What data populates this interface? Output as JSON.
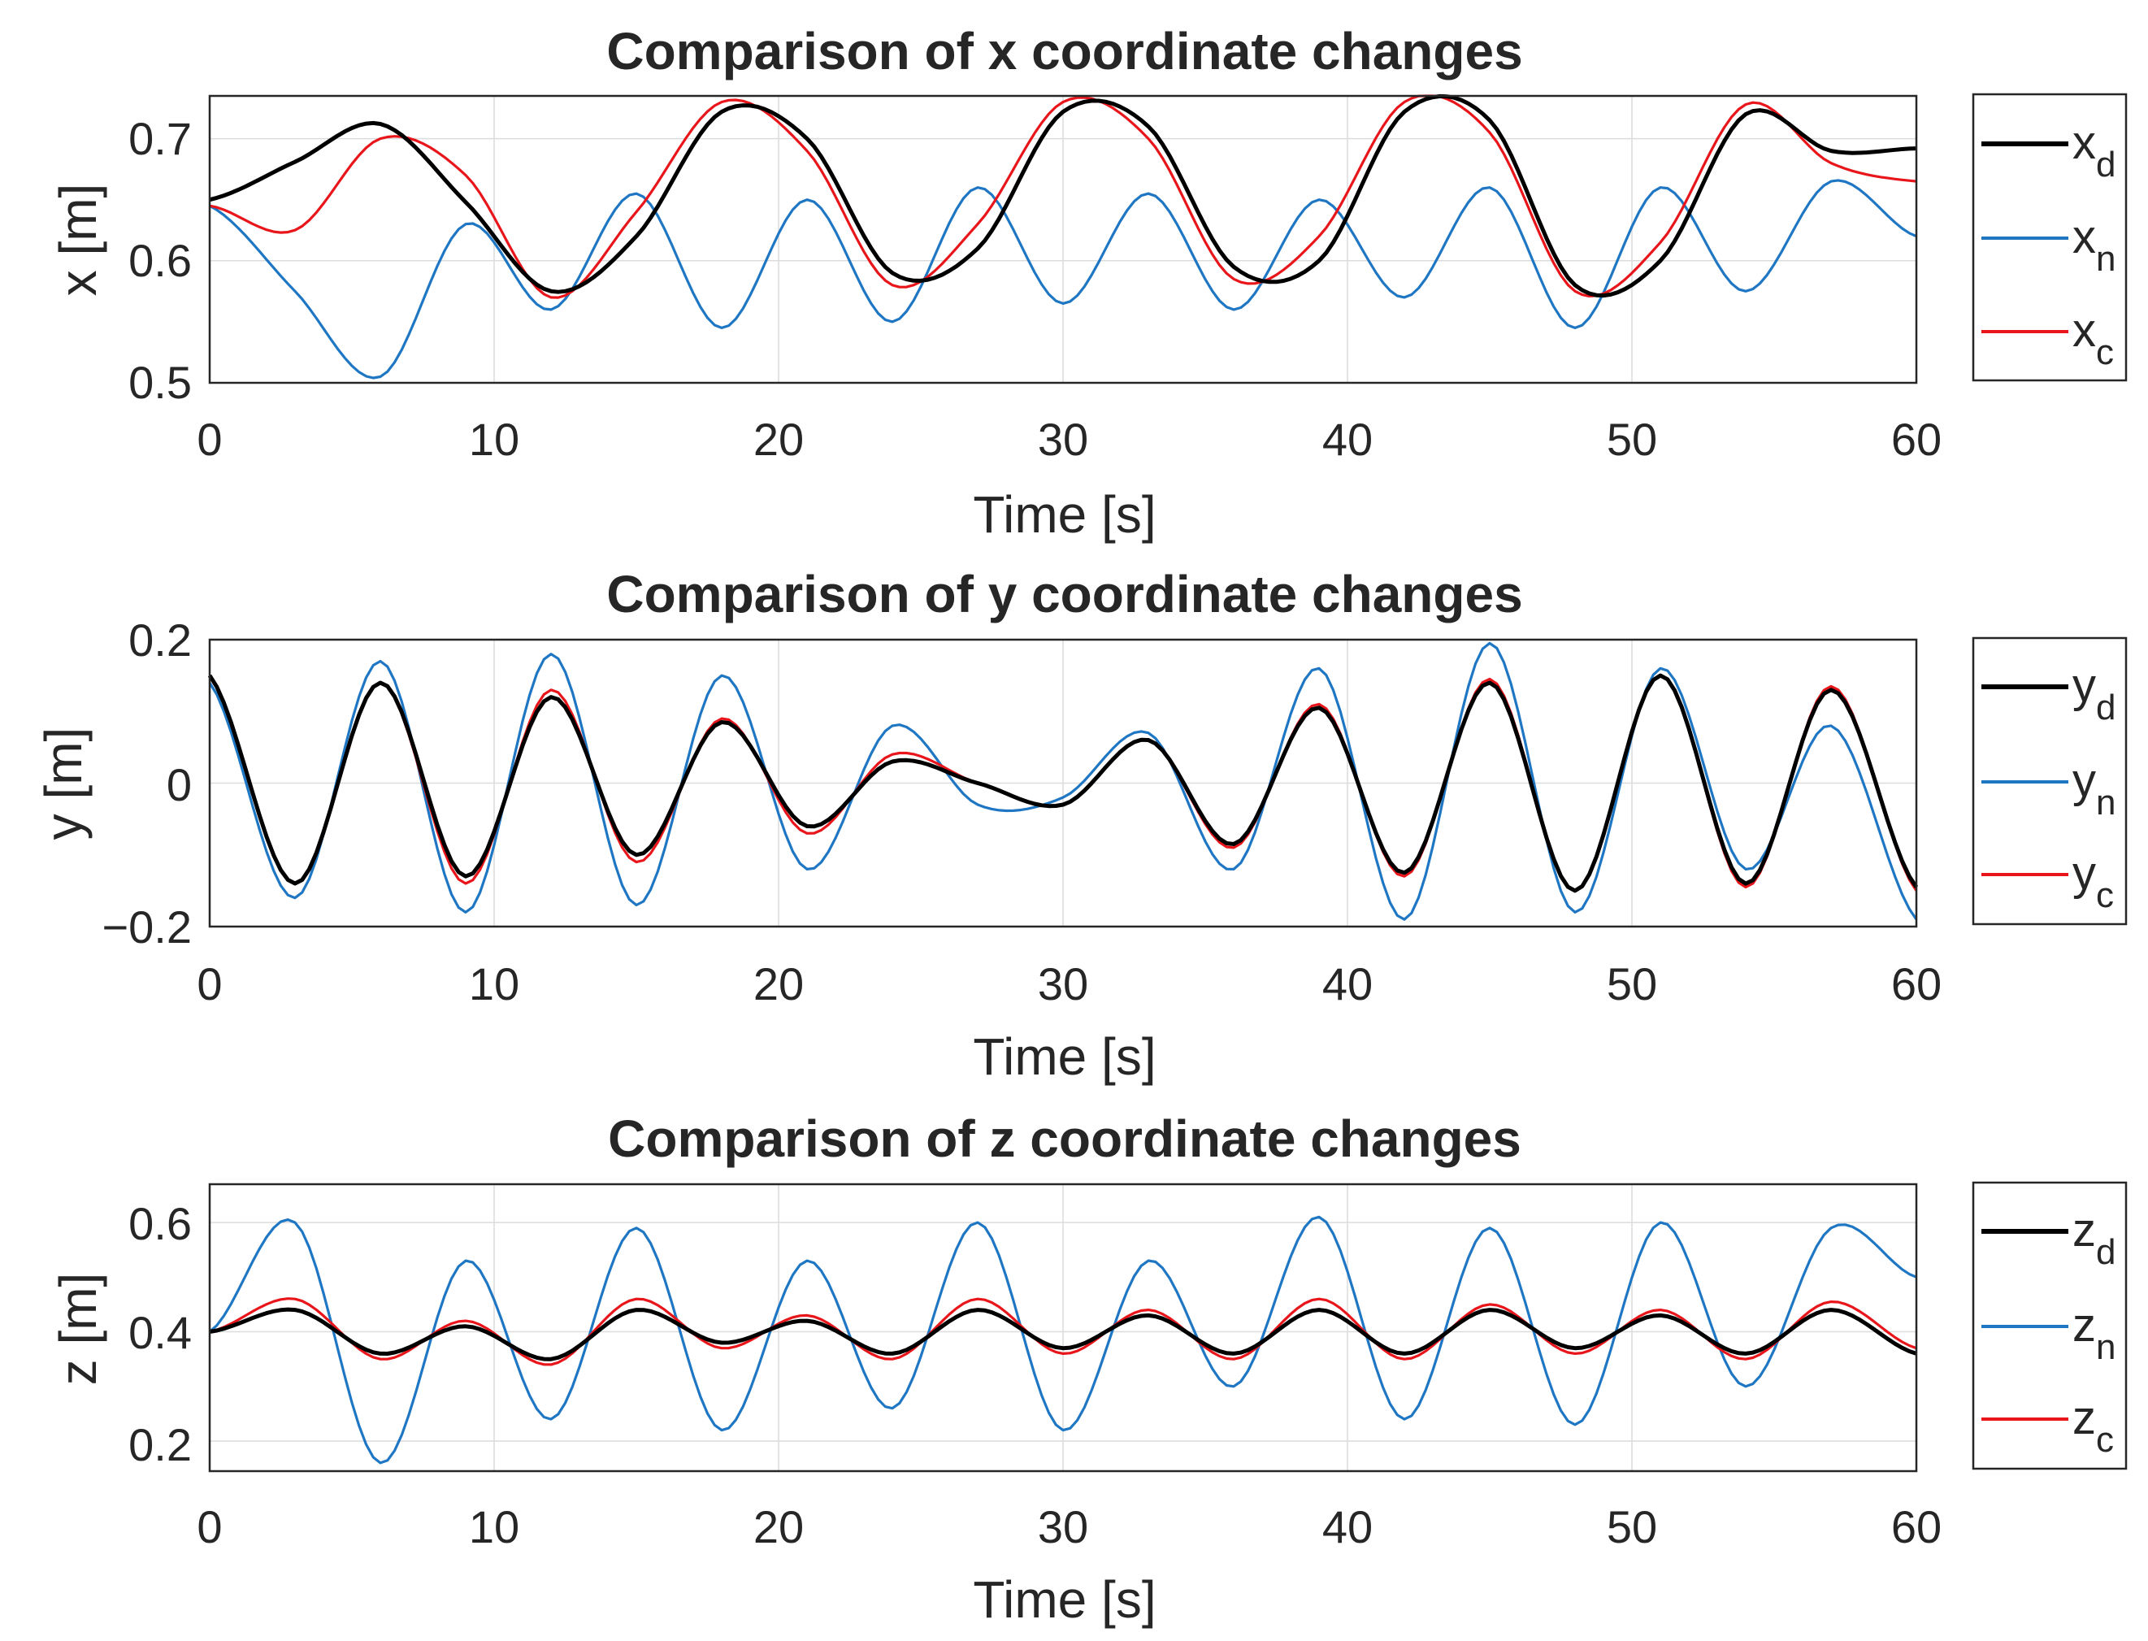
{
  "chart_data": [
    {
      "type": "line",
      "title": "Comparison of x coordinate changes",
      "xlabel": "Time [s]",
      "ylabel": "x [m]",
      "xlim": [
        0,
        60
      ],
      "ylim": [
        0.5,
        0.735
      ],
      "xticks": [
        "0",
        "10",
        "20",
        "30",
        "40",
        "50",
        "60"
      ],
      "yticks": [
        "0.5",
        "0.6",
        "0.7"
      ],
      "grid": true,
      "legend": "outside-right",
      "x": [
        0,
        3,
        6,
        9,
        12,
        15,
        18,
        21,
        24,
        27,
        30,
        33,
        36,
        39,
        42,
        45,
        48,
        51,
        54,
        57,
        60
      ],
      "series": [
        {
          "name": "x",
          "sub": "d",
          "color": "#000000",
          "values": [
            0.65,
            0.681,
            0.712,
            0.648,
            0.575,
            0.62,
            0.722,
            0.7,
            0.59,
            0.61,
            0.722,
            0.71,
            0.595,
            0.6,
            0.722,
            0.715,
            0.58,
            0.6,
            0.72,
            0.69,
            0.692
          ]
        },
        {
          "name": "x",
          "sub": "n",
          "color": "#1f77c4",
          "values": [
            0.645,
            0.575,
            0.505,
            0.63,
            0.56,
            0.655,
            0.545,
            0.65,
            0.55,
            0.66,
            0.565,
            0.655,
            0.56,
            0.65,
            0.57,
            0.66,
            0.545,
            0.66,
            0.575,
            0.665,
            0.62
          ]
        },
        {
          "name": "x",
          "sub": "c",
          "color": "#e8161b",
          "values": [
            0.645,
            0.625,
            0.7,
            0.67,
            0.57,
            0.64,
            0.73,
            0.69,
            0.58,
            0.63,
            0.73,
            0.7,
            0.585,
            0.62,
            0.73,
            0.705,
            0.575,
            0.615,
            0.728,
            0.68,
            0.665
          ]
        }
      ]
    },
    {
      "type": "line",
      "title": "Comparison of y coordinate changes",
      "xlabel": "Time [s]",
      "ylabel": "y [m]",
      "xlim": [
        0,
        60
      ],
      "ylim": [
        -0.2,
        0.2
      ],
      "xticks": [
        "0",
        "10",
        "20",
        "30",
        "40",
        "50",
        "60"
      ],
      "yticks": [
        "−0.2",
        "0",
        "0.2"
      ],
      "grid": true,
      "legend": "outside-right",
      "x": [
        0,
        3,
        6,
        9,
        12,
        15,
        18,
        21,
        24,
        27,
        30,
        33,
        36,
        39,
        42,
        45,
        48,
        51,
        54,
        57,
        60
      ],
      "series": [
        {
          "name": "y",
          "sub": "d",
          "color": "#000000",
          "values": [
            0.15,
            -0.14,
            0.14,
            -0.13,
            0.12,
            -0.1,
            0.085,
            -0.06,
            0.03,
            0.0,
            -0.03,
            0.06,
            -0.085,
            0.105,
            -0.125,
            0.14,
            -0.15,
            0.15,
            -0.14,
            0.13,
            -0.145
          ]
        },
        {
          "name": "y",
          "sub": "n",
          "color": "#1f77c4",
          "values": [
            0.14,
            -0.16,
            0.17,
            -0.18,
            0.18,
            -0.17,
            0.15,
            -0.12,
            0.08,
            -0.03,
            -0.02,
            0.07,
            -0.12,
            0.16,
            -0.19,
            0.195,
            -0.18,
            0.16,
            -0.12,
            0.08,
            -0.19
          ]
        },
        {
          "name": "y",
          "sub": "c",
          "color": "#e8161b",
          "values": [
            0.15,
            -0.14,
            0.14,
            -0.14,
            0.13,
            -0.11,
            0.09,
            -0.07,
            0.04,
            0.0,
            -0.03,
            0.06,
            -0.09,
            0.11,
            -0.13,
            0.145,
            -0.15,
            0.15,
            -0.145,
            0.135,
            -0.15
          ]
        }
      ]
    },
    {
      "type": "line",
      "title": "Comparison of z coordinate changes",
      "xlabel": "Time [s]",
      "ylabel": "z [m]",
      "xlim": [
        0,
        60
      ],
      "ylim": [
        0.145,
        0.67
      ],
      "xticks": [
        "0",
        "10",
        "20",
        "30",
        "40",
        "50",
        "60"
      ],
      "yticks": [
        "0.2",
        "0.4",
        "0.6"
      ],
      "grid": true,
      "legend": "outside-right",
      "x": [
        0,
        3,
        6,
        9,
        12,
        15,
        18,
        21,
        24,
        27,
        30,
        33,
        36,
        39,
        42,
        45,
        48,
        51,
        54,
        57,
        60
      ],
      "series": [
        {
          "name": "z",
          "sub": "d",
          "color": "#000000",
          "values": [
            0.4,
            0.44,
            0.36,
            0.41,
            0.35,
            0.44,
            0.38,
            0.42,
            0.36,
            0.44,
            0.37,
            0.43,
            0.36,
            0.44,
            0.36,
            0.44,
            0.37,
            0.43,
            0.36,
            0.44,
            0.36
          ]
        },
        {
          "name": "z",
          "sub": "n",
          "color": "#1f77c4",
          "values": [
            0.4,
            0.6,
            0.16,
            0.53,
            0.24,
            0.59,
            0.22,
            0.53,
            0.26,
            0.6,
            0.22,
            0.53,
            0.3,
            0.61,
            0.24,
            0.59,
            0.23,
            0.6,
            0.3,
            0.59,
            0.5
          ]
        },
        {
          "name": "z",
          "sub": "c",
          "color": "#e8161b",
          "values": [
            0.4,
            0.46,
            0.35,
            0.42,
            0.34,
            0.46,
            0.37,
            0.43,
            0.35,
            0.46,
            0.36,
            0.44,
            0.35,
            0.46,
            0.35,
            0.45,
            0.36,
            0.44,
            0.35,
            0.455,
            0.37
          ]
        }
      ]
    }
  ]
}
